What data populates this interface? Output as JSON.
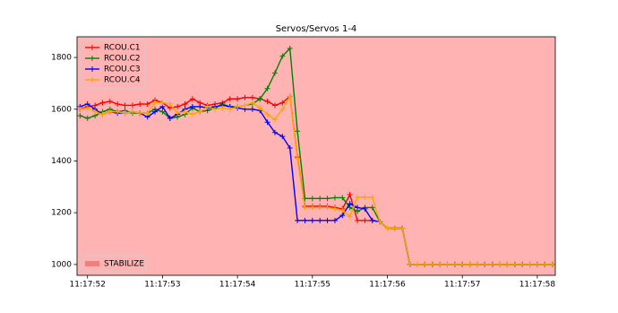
{
  "chart_data": {
    "type": "line",
    "title": "Servos/Servos 1-4",
    "x": [
      51.9,
      52.0,
      52.1,
      52.2,
      52.3,
      52.4,
      52.5,
      52.6,
      52.7,
      52.8,
      52.9,
      53.0,
      53.1,
      53.2,
      53.3,
      53.4,
      53.5,
      53.6,
      53.7,
      53.8,
      53.9,
      54.0,
      54.1,
      54.2,
      54.3,
      54.4,
      54.5,
      54.6,
      54.7,
      54.8,
      54.9,
      55.0,
      55.1,
      55.2,
      55.3,
      55.4,
      55.5,
      55.6,
      55.7,
      55.8,
      55.9,
      56.0,
      56.1,
      56.2,
      56.3,
      56.4,
      56.5,
      56.6,
      56.7,
      56.8,
      56.9,
      57.0,
      57.1,
      57.2,
      57.3,
      57.4,
      57.5,
      57.6,
      57.7,
      57.8,
      57.9,
      58.0,
      58.1,
      58.2
    ],
    "series": [
      {
        "name": "RCOU.C1",
        "color": "#ff0000",
        "values": [
          1600,
          1610,
          1615,
          1625,
          1630,
          1620,
          1615,
          1615,
          1620,
          1620,
          1635,
          1625,
          1605,
          1610,
          1620,
          1640,
          1625,
          1615,
          1620,
          1625,
          1640,
          1640,
          1645,
          1645,
          1640,
          1630,
          1615,
          1625,
          1650,
          1415,
          1225,
          1225,
          1225,
          1225,
          1220,
          1215,
          1270,
          1170,
          1170,
          1170,
          1165,
          1140,
          1140,
          1140,
          1000,
          1000,
          1000,
          1000,
          1000,
          1000,
          1000,
          1000,
          1000,
          1000,
          1000,
          1000,
          1000,
          1000,
          1000,
          1000,
          1000,
          1000,
          1000,
          1000
        ]
      },
      {
        "name": "RCOU.C2",
        "color": "#008000",
        "values": [
          1575,
          1565,
          1575,
          1590,
          1600,
          1590,
          1595,
          1585,
          1585,
          1585,
          1600,
          1590,
          1565,
          1570,
          1580,
          1605,
          1590,
          1595,
          1605,
          1620,
          1610,
          1610,
          1615,
          1620,
          1640,
          1680,
          1740,
          1805,
          1835,
          1515,
          1255,
          1255,
          1255,
          1255,
          1258,
          1258,
          1220,
          1205,
          1220,
          1220,
          1165,
          1140,
          1140,
          1140,
          1000,
          1000,
          1000,
          1000,
          1000,
          1000,
          1000,
          1000,
          1000,
          1000,
          1000,
          1000,
          1000,
          1000,
          1000,
          1000,
          1000,
          1000,
          1000,
          1000
        ]
      },
      {
        "name": "RCOU.C3",
        "color": "#0000ff",
        "values": [
          1610,
          1620,
          1600,
          1580,
          1590,
          1585,
          1585,
          1590,
          1585,
          1570,
          1590,
          1610,
          1565,
          1580,
          1600,
          1610,
          1610,
          1605,
          1610,
          1615,
          1610,
          1605,
          1600,
          1600,
          1595,
          1550,
          1510,
          1495,
          1450,
          1170,
          1170,
          1170,
          1170,
          1170,
          1170,
          1190,
          1235,
          1220,
          1215,
          1170,
          1165,
          1140,
          1140,
          1140,
          1000,
          1000,
          1000,
          1000,
          1000,
          1000,
          1000,
          1000,
          1000,
          1000,
          1000,
          1000,
          1000,
          1000,
          1000,
          1000,
          1000,
          1000,
          1000,
          1000
        ]
      },
      {
        "name": "RCOU.C4",
        "color": "#ffa500",
        "values": [
          1600,
          1605,
          1590,
          1580,
          1590,
          1590,
          1585,
          1590,
          1585,
          1585,
          1625,
          1625,
          1620,
          1585,
          1590,
          1580,
          1590,
          1610,
          1600,
          1605,
          1600,
          1610,
          1615,
          1625,
          1605,
          1580,
          1560,
          1600,
          1650,
          1410,
          1220,
          1220,
          1220,
          1220,
          1215,
          1210,
          1185,
          1260,
          1260,
          1260,
          1165,
          1140,
          1140,
          1140,
          1000,
          1000,
          1000,
          1000,
          1000,
          1000,
          1000,
          1000,
          1000,
          1000,
          1000,
          1000,
          1000,
          1000,
          1000,
          1000,
          1000,
          1000,
          1000,
          1000
        ]
      }
    ],
    "xlim": [
      51.86,
      58.24
    ],
    "xticks": [
      {
        "value": 52,
        "label": "11:17:52"
      },
      {
        "value": 53,
        "label": "11:17:53"
      },
      {
        "value": 54,
        "label": "11:17:54"
      },
      {
        "value": 55,
        "label": "11:17:55"
      },
      {
        "value": 56,
        "label": "11:17:56"
      },
      {
        "value": 57,
        "label": "11:17:57"
      },
      {
        "value": 58,
        "label": "11:17:58"
      }
    ],
    "ylim": [
      958,
      1880
    ],
    "yticks": [
      1000,
      1200,
      1400,
      1600,
      1800
    ],
    "legend": "upper left",
    "mode": {
      "name": "STABILIZE",
      "color": "#ffb3b3",
      "legend": "lower left"
    }
  }
}
